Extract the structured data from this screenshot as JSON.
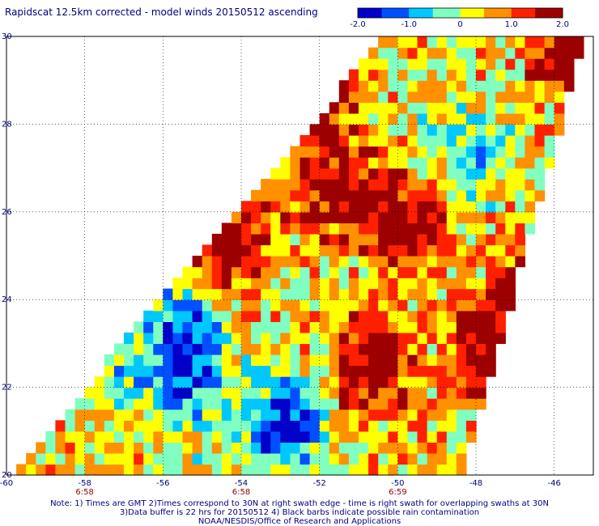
{
  "title": "Rapidscat 12.5km corrected - model winds 20150512 ascending",
  "colorbar": {
    "ticks": [
      "-2.0",
      "-1.0",
      "0",
      "1.0",
      "2.0"
    ],
    "range": [
      -2.0,
      2.0
    ]
  },
  "notes": [
    "Note: 1) Times are GMT 2)Times correspond to 30N at right swath edge - time is right swath for overlapping swaths at 30N",
    "3)Data buffer is 22 hrs for 20150512 4) Black barbs indicate possible rain contamination",
    "NOAA/NESDIS/Office of Research and Applications"
  ],
  "chart_data": {
    "type": "heatmap",
    "title": "Rapidscat 12.5km corrected - model winds 20150512 ascending",
    "xlabel": "",
    "ylabel": "",
    "xlim": [
      -60,
      -45
    ],
    "ylim": [
      20,
      30
    ],
    "x_tick_labels": [
      "-60",
      "-58",
      "-56",
      "-54",
      "-52",
      "-50",
      "-48",
      "-46"
    ],
    "y_tick_labels": [
      "20",
      "22",
      "24",
      "26",
      "28",
      "30"
    ],
    "time_labels": [
      {
        "lon": -58,
        "text": "6:58"
      },
      {
        "lon": -54,
        "text": "6:58"
      },
      {
        "lon": -50,
        "text": "6:59"
      }
    ],
    "grid": true,
    "colormap": [
      "#0000c8",
      "#0050ff",
      "#00c8ff",
      "#80ffc0",
      "#ffff00",
      "#ff9000",
      "#ff2000",
      "#9c0000"
    ],
    "colorbar_range": [
      -2.0,
      2.0
    ],
    "swath_corners": [
      [
        -59.8,
        20.1
      ],
      [
        -50.3,
        30.0
      ],
      [
        -45.2,
        30.0
      ],
      [
        -48.3,
        20.1
      ]
    ],
    "hotspots": [
      {
        "lon": -55.9,
        "lat": 26.2,
        "value": 2.0
      },
      {
        "lon": -54.4,
        "lat": 25.3,
        "value": 1.8
      },
      {
        "lon": -49.8,
        "lat": 25.7,
        "value": 1.9
      },
      {
        "lon": -51.5,
        "lat": 26.5,
        "value": 1.6
      },
      {
        "lon": -50.7,
        "lat": 22.5,
        "value": 1.8
      },
      {
        "lon": -47.6,
        "lat": 22.8,
        "value": 1.9
      },
      {
        "lon": -46.6,
        "lat": 24.2,
        "value": 1.5
      },
      {
        "lon": -52.2,
        "lat": 28.5,
        "value": 1.5
      },
      {
        "lon": -45.5,
        "lat": 29.5,
        "value": 1.9
      },
      {
        "lon": -55.5,
        "lat": 23.5,
        "value": -1.6
      },
      {
        "lon": -52.9,
        "lat": 21.2,
        "value": -2.0
      },
      {
        "lon": -55.4,
        "lat": 22.2,
        "value": -1.3
      },
      {
        "lon": -48.3,
        "lat": 27.3,
        "value": -1.0
      },
      {
        "lon": -57.4,
        "lat": 22.6,
        "value": -0.6
      }
    ]
  }
}
